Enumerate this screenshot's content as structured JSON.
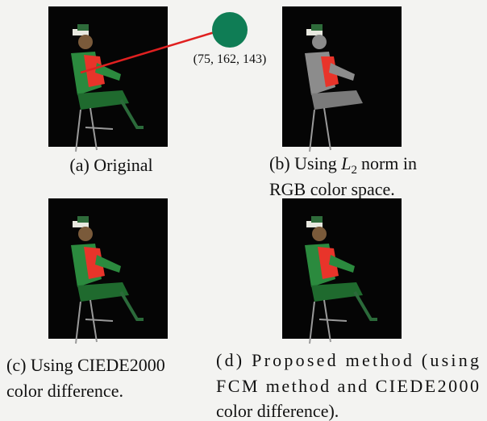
{
  "color_sample": {
    "label": "(75, 162, 143)"
  },
  "panels": [
    {
      "caption": [
        "(a) Original"
      ]
    },
    {
      "caption": {
        "before": "(b) Using",
        "symbol": "L",
        "subscript": "2",
        "after": "norm in",
        "line2": "RGB color space."
      }
    },
    {
      "caption": [
        "(c) Using CIEDE2000",
        "color difference."
      ]
    },
    {
      "caption": [
        "(d) Proposed method (using",
        "FCM method and CIEDE2000",
        "color difference)."
      ]
    }
  ]
}
